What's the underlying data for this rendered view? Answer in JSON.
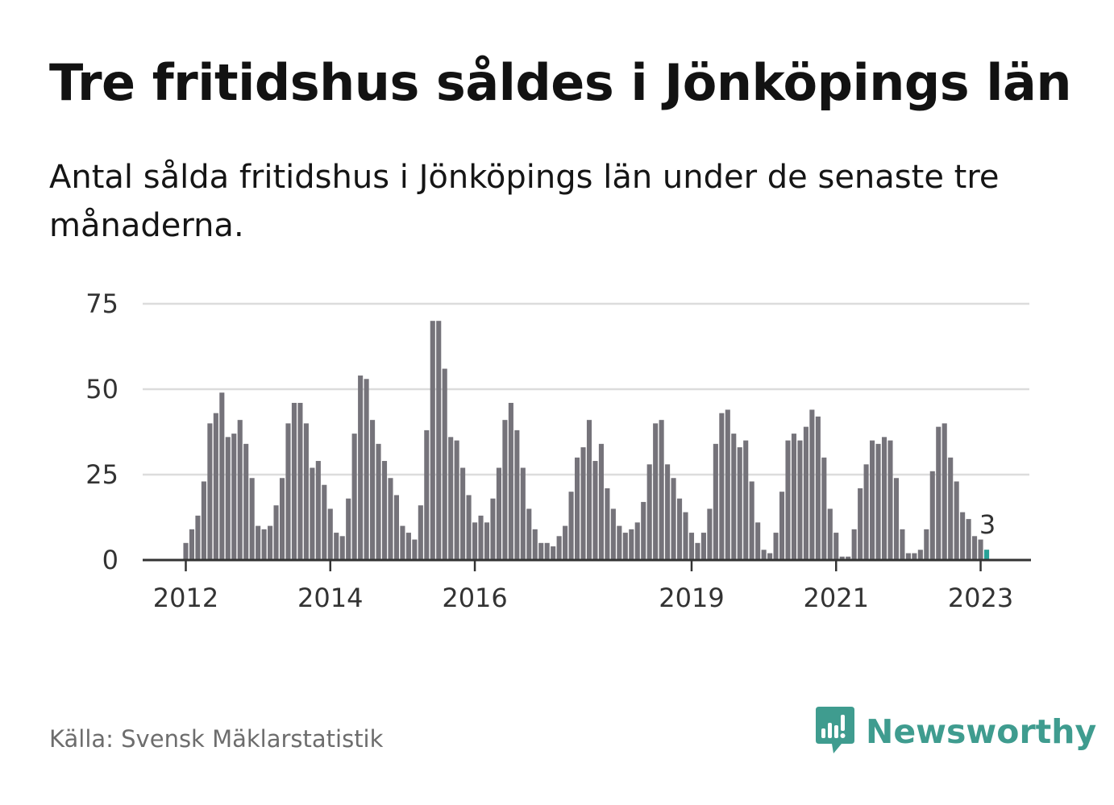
{
  "title": "Tre fritidshus såldes i Jönköpings län",
  "subtitle": "Antal sålda fritidshus i Jönköpings län under de senaste tre månaderna.",
  "source": "Källa: Svensk Mäklarstatistik",
  "brand": {
    "name": "Newsworthy",
    "icon": "newsworthy-logo-icon",
    "color": "#3f9c8f"
  },
  "chart_data": {
    "type": "bar",
    "title": "Tre fritidshus såldes i Jönköpings län",
    "ylabel": "",
    "xlabel": "",
    "ylim": [
      0,
      75
    ],
    "yticks": [
      0,
      25,
      50,
      75
    ],
    "grid": true,
    "start": {
      "year": 2011,
      "month": 6
    },
    "xticks": [
      {
        "label": "2012",
        "index": 7
      },
      {
        "label": "2014",
        "index": 31
      },
      {
        "label": "2016",
        "index": 55
      },
      {
        "label": "2019",
        "index": 91
      },
      {
        "label": "2021",
        "index": 115
      },
      {
        "label": "2023",
        "index": 139
      }
    ],
    "values": [
      0,
      0,
      0,
      0,
      0,
      0,
      0,
      5,
      9,
      13,
      23,
      40,
      43,
      49,
      36,
      37,
      41,
      34,
      24,
      10,
      9,
      10,
      16,
      24,
      40,
      46,
      46,
      40,
      27,
      29,
      22,
      15,
      8,
      7,
      18,
      37,
      54,
      53,
      41,
      34,
      29,
      24,
      19,
      10,
      8,
      6,
      16,
      38,
      70,
      70,
      56,
      36,
      35,
      27,
      19,
      11,
      13,
      11,
      18,
      27,
      41,
      46,
      38,
      27,
      15,
      9,
      5,
      5,
      4,
      7,
      10,
      20,
      30,
      33,
      41,
      29,
      34,
      21,
      15,
      10,
      8,
      9,
      11,
      17,
      28,
      40,
      41,
      28,
      24,
      18,
      14,
      8,
      5,
      8,
      15,
      34,
      43,
      44,
      37,
      33,
      35,
      23,
      11,
      3,
      2,
      8,
      20,
      35,
      37,
      35,
      39,
      44,
      42,
      30,
      15,
      8,
      1,
      1,
      9,
      21,
      28,
      35,
      34,
      36,
      35,
      24,
      9,
      2,
      2,
      3,
      9,
      26,
      39,
      40,
      30,
      23,
      14,
      12,
      7,
      6,
      3
    ],
    "bar_color": "#75737a",
    "highlight_color": "#28a197",
    "highlight_index": 140,
    "highlight_label": "3",
    "grid_color": "#dcdcdc",
    "axis_color": "#333333"
  }
}
